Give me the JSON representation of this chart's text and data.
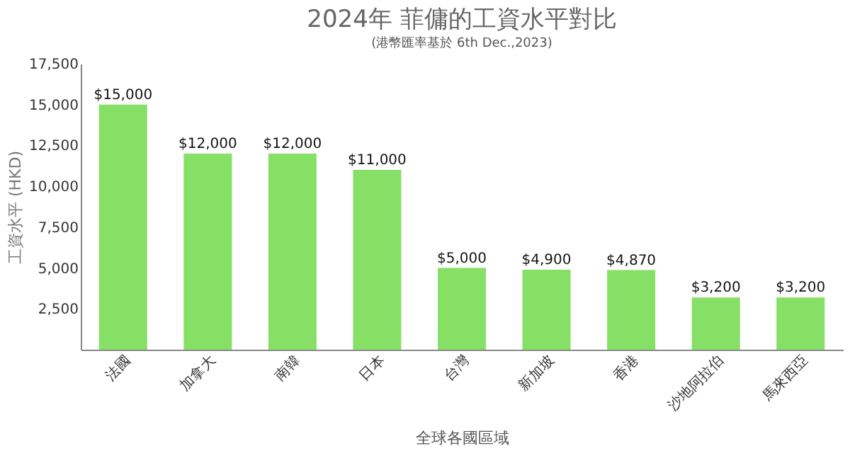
{
  "chart_data": {
    "type": "bar",
    "title": "2024年 菲傭的工資水平對比",
    "subtitle": "(港幣匯率基於 6th Dec.,2023)",
    "xlabel": "全球各國區域",
    "ylabel": "工資水平 (HKD)",
    "categories": [
      "法國",
      "加拿大",
      "南韓",
      "日本",
      "台灣",
      "新加坡",
      "香港",
      "沙地阿拉伯",
      "馬來西亞"
    ],
    "values": [
      15000,
      12000,
      12000,
      11000,
      5000,
      4900,
      4870,
      3200,
      3200
    ],
    "value_labels": [
      "$15,000",
      "$12,000",
      "$12,000",
      "$11,000",
      "$5,000",
      "$4,900",
      "$4,870",
      "$3,200",
      "$3,200"
    ],
    "color": "#86e065",
    "ylim": [
      0,
      17500
    ],
    "yticks": [
      {
        "value": 2500,
        "label": "2,500"
      },
      {
        "value": 5000,
        "label": "5,000"
      },
      {
        "value": 7500,
        "label": "7,500"
      },
      {
        "value": 10000,
        "label": "10,000"
      },
      {
        "value": 12500,
        "label": "12,500"
      },
      {
        "value": 15000,
        "label": "15,000"
      },
      {
        "value": 17500,
        "label": "17,500"
      }
    ],
    "grid": false,
    "legend": false
  }
}
